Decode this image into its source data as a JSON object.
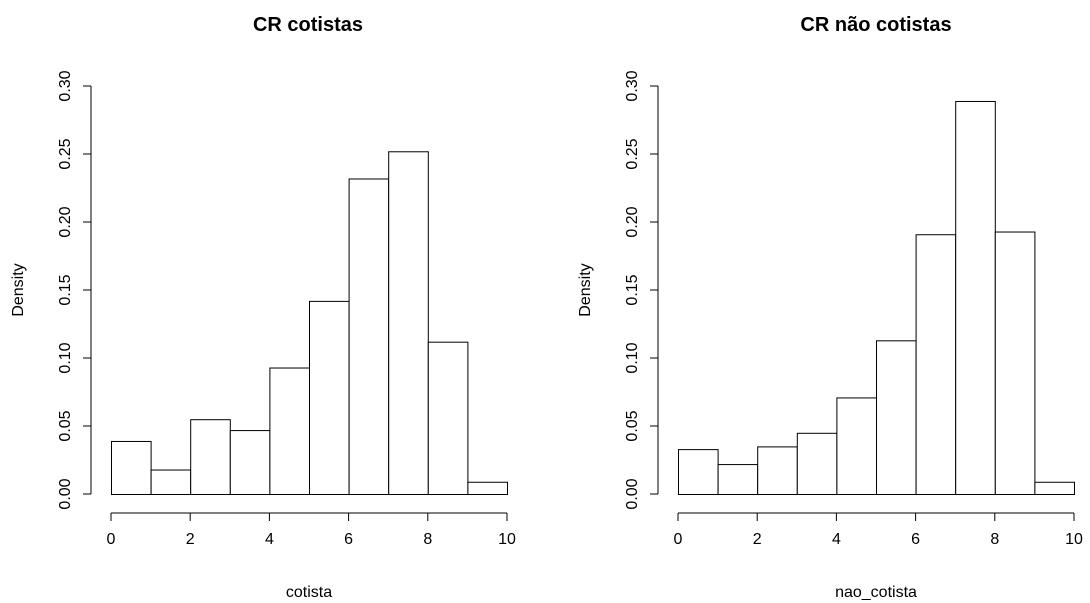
{
  "chart_data": [
    {
      "type": "bar",
      "subtype": "histogram",
      "title": "CR cotistas",
      "xlabel": "cotista",
      "ylabel": "Density",
      "bin_edges": [
        0,
        1,
        2,
        3,
        4,
        5,
        6,
        7,
        8,
        9,
        10
      ],
      "values": [
        0.039,
        0.018,
        0.055,
        0.047,
        0.093,
        0.142,
        0.232,
        0.252,
        0.112,
        0.009
      ],
      "xlim": [
        0,
        10
      ],
      "ylim": [
        0,
        0.3
      ],
      "xticks": [
        "0",
        "2",
        "4",
        "6",
        "8",
        "10"
      ],
      "yticks": [
        "0.00",
        "0.05",
        "0.10",
        "0.15",
        "0.20",
        "0.25",
        "0.30"
      ],
      "grid": false,
      "legend": "none"
    },
    {
      "type": "bar",
      "subtype": "histogram",
      "title": "CR não cotistas",
      "xlabel": "nao_cotista",
      "ylabel": "Density",
      "bin_edges": [
        0,
        1,
        2,
        3,
        4,
        5,
        6,
        7,
        8,
        9,
        10
      ],
      "values": [
        0.033,
        0.022,
        0.035,
        0.045,
        0.071,
        0.113,
        0.191,
        0.289,
        0.193,
        0.009
      ],
      "xlim": [
        0,
        10
      ],
      "ylim": [
        0,
        0.3
      ],
      "xticks": [
        "0",
        "2",
        "4",
        "6",
        "8",
        "10"
      ],
      "yticks": [
        "0.00",
        "0.05",
        "0.10",
        "0.15",
        "0.20",
        "0.25",
        "0.30"
      ],
      "grid": false,
      "legend": "none"
    }
  ]
}
